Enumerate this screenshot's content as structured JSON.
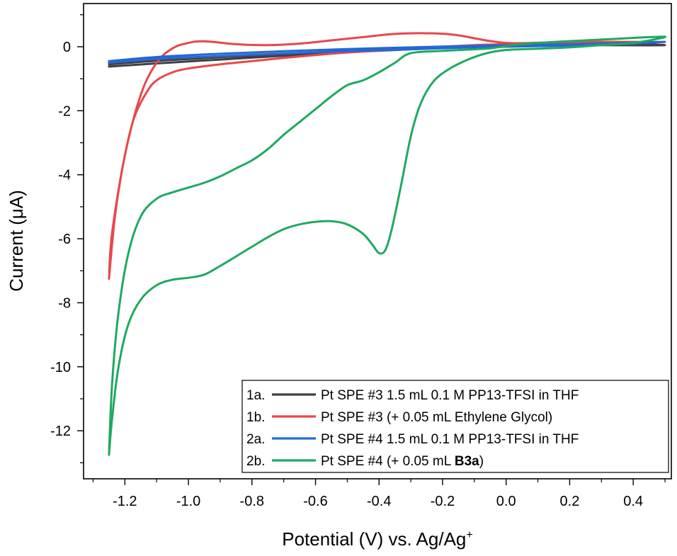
{
  "chart_data": {
    "type": "line",
    "title": "",
    "xlabel": "Potential (V) vs. Ag/Ag",
    "xlabel_superscript": "+",
    "ylabel": "Current (μA)",
    "xlim": [
      -1.33,
      0.52
    ],
    "ylim": [
      -13.5,
      1.35
    ],
    "x_ticks": [
      -1.2,
      -1.0,
      -0.8,
      -0.6,
      -0.4,
      -0.2,
      0.0,
      0.2,
      0.4
    ],
    "x_tick_labels": [
      "-1.2",
      "-1.0",
      "-0.8",
      "-0.6",
      "-0.4",
      "-0.2",
      "0.0",
      "0.2",
      "0.4"
    ],
    "y_ticks": [
      0,
      -2,
      -4,
      -6,
      -8,
      -10,
      -12
    ],
    "y_tick_labels": [
      "0",
      "-2",
      "-4",
      "-6",
      "-8",
      "-10",
      "-12"
    ],
    "grid": false,
    "legend_position": "bottom-right",
    "series": [
      {
        "name": "Pt SPE #3 1.5 mL 0.1 M PP13-TFSI in THF",
        "legend_prefix": "1a.",
        "color": "#404040",
        "points": [
          [
            -1.25,
            -0.62
          ],
          [
            -1.1,
            -0.52
          ],
          [
            -0.9,
            -0.4
          ],
          [
            -0.7,
            -0.28
          ],
          [
            -0.5,
            -0.17
          ],
          [
            -0.3,
            -0.08
          ],
          [
            -0.1,
            0.0
          ],
          [
            0.1,
            0.04
          ],
          [
            0.3,
            0.05
          ],
          [
            0.5,
            0.05
          ],
          [
            0.3,
            0.12
          ],
          [
            0.1,
            0.08
          ],
          [
            -0.1,
            0.02
          ],
          [
            -0.3,
            -0.05
          ],
          [
            -0.5,
            -0.13
          ],
          [
            -0.7,
            -0.22
          ],
          [
            -0.9,
            -0.33
          ],
          [
            -1.1,
            -0.44
          ],
          [
            -1.25,
            -0.55
          ]
        ]
      },
      {
        "name": "Pt SPE #3 (+ 0.05 mL Ethylene Glycol)",
        "legend_prefix": "1b.",
        "color": "#e8474b",
        "points": [
          [
            -1.25,
            -7.25
          ],
          [
            -1.23,
            -5.2
          ],
          [
            -1.2,
            -3.4
          ],
          [
            -1.17,
            -2.2
          ],
          [
            -1.13,
            -1.4
          ],
          [
            -1.1,
            -1.05
          ],
          [
            -1.05,
            -0.8
          ],
          [
            -1.0,
            -0.68
          ],
          [
            -0.9,
            -0.55
          ],
          [
            -0.8,
            -0.45
          ],
          [
            -0.7,
            -0.35
          ],
          [
            -0.6,
            -0.26
          ],
          [
            -0.5,
            -0.18
          ],
          [
            -0.4,
            -0.12
          ],
          [
            -0.3,
            -0.06
          ],
          [
            -0.2,
            0.0
          ],
          [
            -0.1,
            0.05
          ],
          [
            0.0,
            0.08
          ],
          [
            0.2,
            0.12
          ],
          [
            0.5,
            0.15
          ],
          [
            0.2,
            0.15
          ],
          [
            0.0,
            0.12
          ],
          [
            -0.16,
            0.37
          ],
          [
            -0.25,
            0.42
          ],
          [
            -0.35,
            0.4
          ],
          [
            -0.45,
            0.3
          ],
          [
            -0.55,
            0.2
          ],
          [
            -0.65,
            0.1
          ],
          [
            -0.75,
            0.05
          ],
          [
            -0.85,
            0.08
          ],
          [
            -0.95,
            0.17
          ],
          [
            -1.0,
            0.12
          ],
          [
            -1.05,
            -0.05
          ],
          [
            -1.1,
            -0.5
          ],
          [
            -1.15,
            -1.5
          ],
          [
            -1.2,
            -3.4
          ],
          [
            -1.24,
            -5.8
          ],
          [
            -1.25,
            -7.25
          ]
        ]
      },
      {
        "name": "Pt SPE #4 1.5 mL 0.1 M PP13-TFSI in THF",
        "legend_prefix": "2a.",
        "color": "#2568d4",
        "points": [
          [
            -1.25,
            -0.45
          ],
          [
            -1.1,
            -0.32
          ],
          [
            -0.9,
            -0.22
          ],
          [
            -0.7,
            -0.14
          ],
          [
            -0.5,
            -0.07
          ],
          [
            -0.3,
            -0.02
          ],
          [
            -0.1,
            0.03
          ],
          [
            0.1,
            0.06
          ],
          [
            0.3,
            0.1
          ],
          [
            0.5,
            0.15
          ],
          [
            0.3,
            0.06
          ],
          [
            0.1,
            0.02
          ],
          [
            -0.1,
            -0.02
          ],
          [
            -0.3,
            -0.08
          ],
          [
            -0.5,
            -0.14
          ],
          [
            -0.7,
            -0.21
          ],
          [
            -0.9,
            -0.29
          ],
          [
            -1.1,
            -0.38
          ],
          [
            -1.25,
            -0.5
          ]
        ]
      },
      {
        "name": "Pt SPE #4 (+ 0.05 mL B3a)",
        "legend_prefix": "2b.",
        "color": "#1eaa5f",
        "points": [
          [
            -1.25,
            -12.75
          ],
          [
            -1.24,
            -11.6
          ],
          [
            -1.22,
            -10.0
          ],
          [
            -1.19,
            -8.7
          ],
          [
            -1.15,
            -7.9
          ],
          [
            -1.1,
            -7.45
          ],
          [
            -1.05,
            -7.28
          ],
          [
            -1.0,
            -7.22
          ],
          [
            -0.95,
            -7.12
          ],
          [
            -0.9,
            -6.85
          ],
          [
            -0.85,
            -6.55
          ],
          [
            -0.8,
            -6.25
          ],
          [
            -0.75,
            -5.95
          ],
          [
            -0.7,
            -5.7
          ],
          [
            -0.65,
            -5.55
          ],
          [
            -0.6,
            -5.47
          ],
          [
            -0.55,
            -5.45
          ],
          [
            -0.5,
            -5.55
          ],
          [
            -0.45,
            -5.85
          ],
          [
            -0.42,
            -6.2
          ],
          [
            -0.4,
            -6.45
          ],
          [
            -0.38,
            -6.35
          ],
          [
            -0.36,
            -5.7
          ],
          [
            -0.33,
            -4.3
          ],
          [
            -0.3,
            -2.8
          ],
          [
            -0.27,
            -1.8
          ],
          [
            -0.23,
            -1.1
          ],
          [
            -0.18,
            -0.7
          ],
          [
            -0.12,
            -0.4
          ],
          [
            -0.06,
            -0.2
          ],
          [
            0.0,
            -0.1
          ],
          [
            0.1,
            -0.06
          ],
          [
            0.2,
            -0.02
          ],
          [
            0.3,
            0.05
          ],
          [
            0.4,
            0.12
          ],
          [
            0.5,
            0.3
          ],
          [
            0.45,
            0.3
          ],
          [
            0.35,
            0.25
          ],
          [
            0.25,
            0.2
          ],
          [
            0.15,
            0.15
          ],
          [
            0.05,
            0.08
          ],
          [
            0.0,
            0.02
          ],
          [
            -0.05,
            -0.05
          ],
          [
            -0.1,
            -0.08
          ],
          [
            -0.2,
            -0.13
          ],
          [
            -0.3,
            -0.2
          ],
          [
            -0.35,
            -0.5
          ],
          [
            -0.4,
            -0.8
          ],
          [
            -0.45,
            -1.05
          ],
          [
            -0.5,
            -1.2
          ],
          [
            -0.55,
            -1.55
          ],
          [
            -0.6,
            -1.95
          ],
          [
            -0.65,
            -2.35
          ],
          [
            -0.7,
            -2.75
          ],
          [
            -0.75,
            -3.2
          ],
          [
            -0.8,
            -3.55
          ],
          [
            -0.85,
            -3.8
          ],
          [
            -0.9,
            -4.05
          ],
          [
            -0.95,
            -4.25
          ],
          [
            -1.0,
            -4.4
          ],
          [
            -1.05,
            -4.55
          ],
          [
            -1.1,
            -4.75
          ],
          [
            -1.15,
            -5.3
          ],
          [
            -1.19,
            -6.5
          ],
          [
            -1.22,
            -8.3
          ],
          [
            -1.24,
            -10.5
          ],
          [
            -1.25,
            -12.75
          ]
        ]
      }
    ],
    "legend_items": [
      {
        "prefix": "1a.",
        "text": "Pt SPE #3 1.5 mL 0.1 M PP13-TFSI in THF",
        "bold": "",
        "suffix": ""
      },
      {
        "prefix": "1b.",
        "text": "Pt SPE #3 (+ 0.05 mL Ethylene Glycol)",
        "bold": "",
        "suffix": ""
      },
      {
        "prefix": "2a.",
        "text": "Pt SPE #4 1.5 mL 0.1 M PP13-TFSI in THF",
        "bold": "",
        "suffix": ""
      },
      {
        "prefix": "2b.",
        "text": "Pt SPE #4 (+ 0.05 mL ",
        "bold": "B3a",
        "suffix": ")"
      }
    ]
  }
}
